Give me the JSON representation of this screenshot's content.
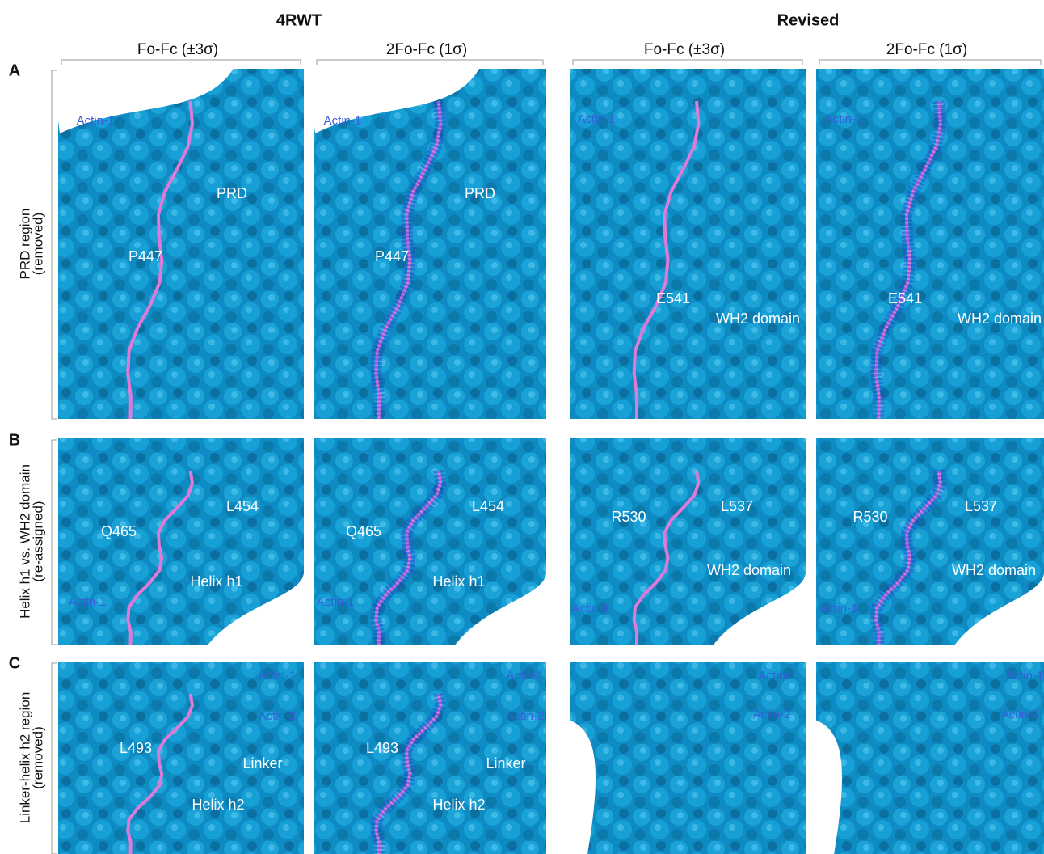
{
  "groups": [
    {
      "title": "4RWT",
      "columns": [
        "Fo-Fc (±3σ)",
        "2Fo-Fc (1σ)"
      ]
    },
    {
      "title": "Revised",
      "columns": [
        "Fo-Fc (±3σ)",
        "2Fo-Fc (1σ)"
      ]
    }
  ],
  "rows": [
    {
      "letter": "A",
      "label": [
        "PRD region",
        "(removed)"
      ],
      "panels": [
        [
          "Actin-1",
          "PRD",
          "P447"
        ],
        [
          "Actin-1",
          "PRD",
          "P447"
        ],
        [
          "Actin-1",
          "E541",
          "WH2 domain"
        ],
        [
          "Actin-1",
          "E541",
          "WH2 domain"
        ]
      ]
    },
    {
      "letter": "B",
      "label": [
        "Helix h1 vs. WH2 domain",
        "(re-assigned)"
      ],
      "panels": [
        [
          "L454",
          "Q465",
          "Helix h1",
          "Actin-1"
        ],
        [
          "L454",
          "Q465",
          "Helix h1",
          "Actin-1"
        ],
        [
          "R530",
          "L537",
          "WH2 domain",
          "Actin-1"
        ],
        [
          "R530",
          "L537",
          "WH2 domain",
          "Actin-1"
        ]
      ]
    },
    {
      "letter": "C",
      "label": [
        "Linker-helix h2 region",
        "(removed)"
      ],
      "panels": [
        [
          "Actin-1",
          "Actin-2",
          "L493",
          "Linker",
          "Helix h2"
        ],
        [
          "Actin-1",
          "Actin-2",
          "L493",
          "Linker",
          "Helix h2"
        ],
        [
          "Actin-1",
          "Actin-2"
        ],
        [
          "Actin-1",
          "Actin-2"
        ]
      ]
    }
  ]
}
